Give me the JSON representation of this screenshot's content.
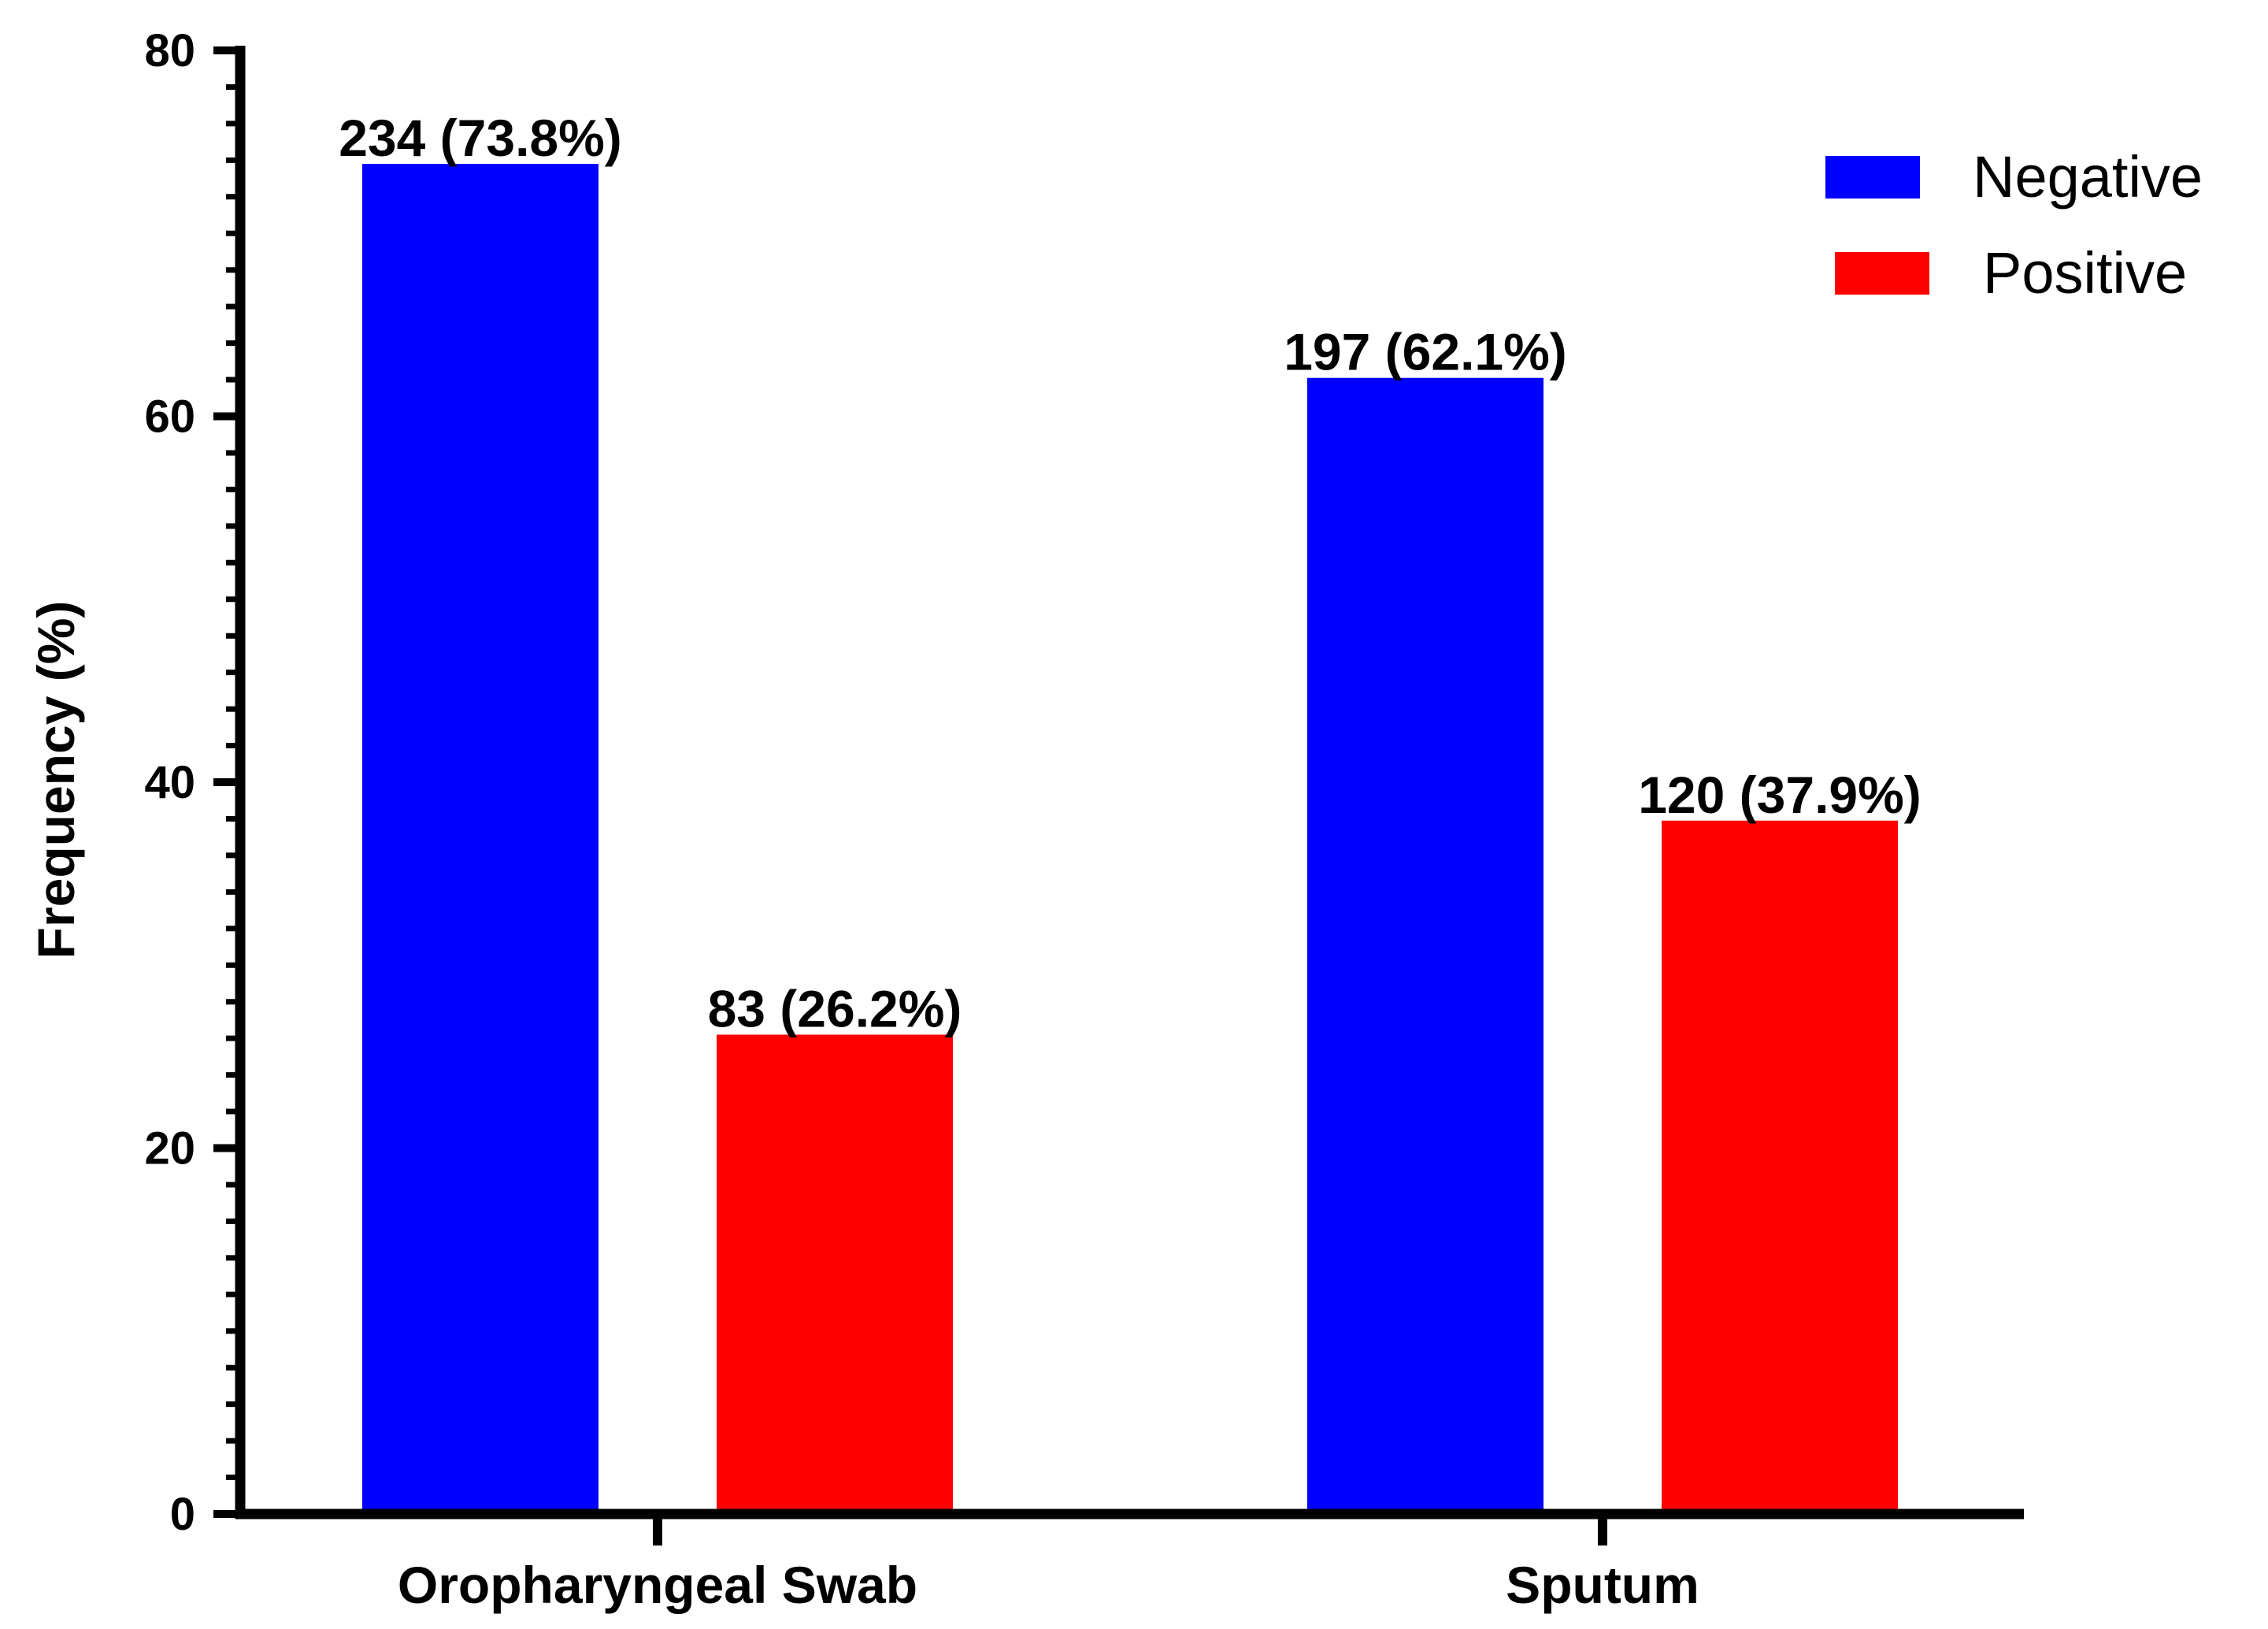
{
  "chart_data": {
    "type": "bar",
    "title": "",
    "xlabel": "",
    "ylabel": "Frequency (%)",
    "ylim": [
      0,
      80
    ],
    "yticks": [
      0,
      20,
      40,
      60,
      80
    ],
    "minor_tick_step": 2,
    "grid": false,
    "legend_position": "top-right",
    "categories": [
      "Oropharyngeal Swab",
      "Sputum"
    ],
    "series": [
      {
        "name": "Negative",
        "color": "#0000ff",
        "values": [
          73.8,
          62.1
        ],
        "labels": [
          "234 (73.8%)",
          "197 (62.1%)"
        ]
      },
      {
        "name": "Positive",
        "color": "#ff0000",
        "values": [
          26.2,
          37.9
        ],
        "labels": [
          "83 (26.2%)",
          "120 (37.9%)"
        ]
      }
    ]
  }
}
